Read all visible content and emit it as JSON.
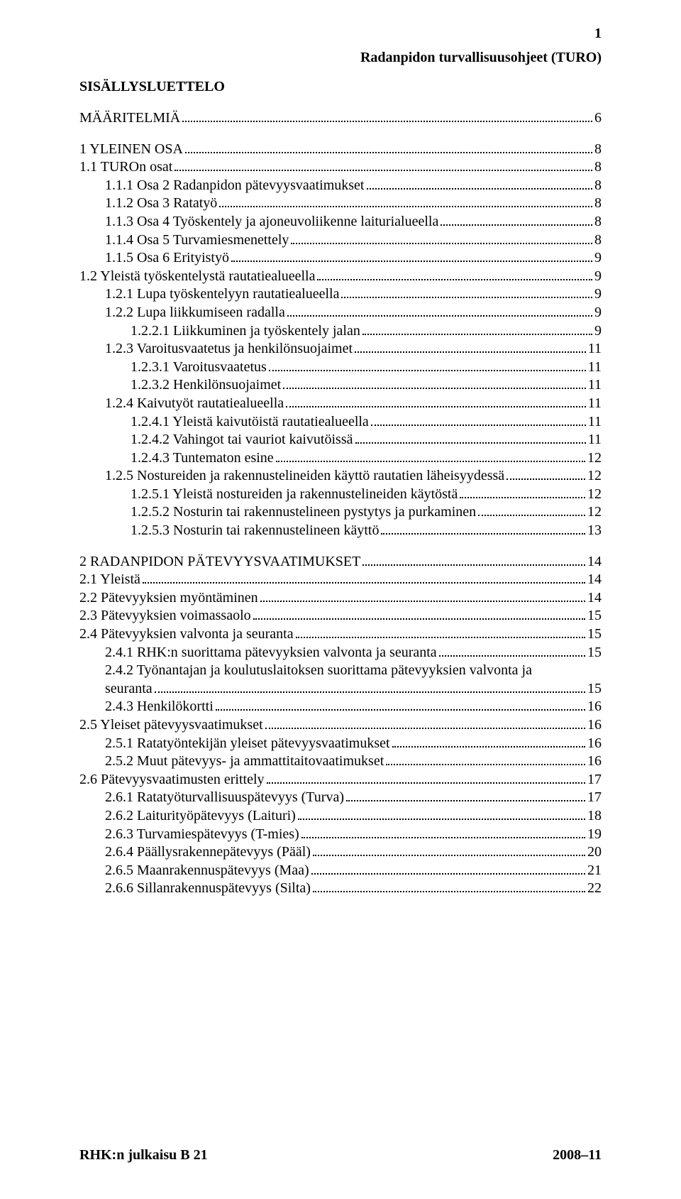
{
  "page_number": "1",
  "top_header": "Radanpidon turvallisuusohjeet (TURO)",
  "toc_title": "SISÄLLYSLUETTELO",
  "sections": [
    {
      "type": "row",
      "indent": 0,
      "label": "MÄÄRITELMIÄ",
      "page": "6"
    },
    {
      "type": "gap"
    },
    {
      "type": "row",
      "indent": 0,
      "label": "1 YLEINEN OSA",
      "page": "8"
    },
    {
      "type": "row",
      "indent": 0,
      "label": "1.1 TUROn osat",
      "page": "8"
    },
    {
      "type": "row",
      "indent": 1,
      "label": "1.1.1 Osa 2 Radanpidon pätevyysvaatimukset",
      "page": "8"
    },
    {
      "type": "row",
      "indent": 1,
      "label": "1.1.2 Osa 3 Ratatyö",
      "page": "8"
    },
    {
      "type": "row",
      "indent": 1,
      "label": "1.1.3 Osa 4 Työskentely ja ajoneuvoliikenne laiturialueella",
      "page": "8"
    },
    {
      "type": "row",
      "indent": 1,
      "label": "1.1.4 Osa 5 Turvamiesmenettely",
      "page": "8"
    },
    {
      "type": "row",
      "indent": 1,
      "label": "1.1.5 Osa 6 Erityistyö",
      "page": "9"
    },
    {
      "type": "row",
      "indent": 0,
      "label": "1.2 Yleistä työskentelystä rautatiealueella",
      "page": "9"
    },
    {
      "type": "row",
      "indent": 1,
      "label": "1.2.1 Lupa työskentelyyn rautatiealueella",
      "page": "9"
    },
    {
      "type": "row",
      "indent": 1,
      "label": "1.2.2 Lupa liikkumiseen radalla",
      "page": "9"
    },
    {
      "type": "row",
      "indent": 2,
      "label": "1.2.2.1 Liikkuminen ja työskentely jalan",
      "page": "9"
    },
    {
      "type": "row",
      "indent": 1,
      "label": "1.2.3 Varoitusvaatetus ja henkilönsuojaimet",
      "page": "11"
    },
    {
      "type": "row",
      "indent": 2,
      "label": "1.2.3.1 Varoitusvaatetus",
      "page": "11"
    },
    {
      "type": "row",
      "indent": 2,
      "label": "1.2.3.2 Henkilönsuojaimet",
      "page": "11"
    },
    {
      "type": "row",
      "indent": 1,
      "label": "1.2.4 Kaivutyöt rautatiealueella",
      "page": "11"
    },
    {
      "type": "row",
      "indent": 2,
      "label": "1.2.4.1 Yleistä kaivutöistä rautatiealueella",
      "page": "11"
    },
    {
      "type": "row",
      "indent": 2,
      "label": "1.2.4.2 Vahingot tai vauriot kaivutöissä",
      "page": "11"
    },
    {
      "type": "row",
      "indent": 2,
      "label": "1.2.4.3 Tuntematon esine",
      "page": "12"
    },
    {
      "type": "row",
      "indent": 1,
      "label": "1.2.5 Nostureiden ja rakennustelineiden käyttö rautatien läheisyydessä",
      "page": "12"
    },
    {
      "type": "row",
      "indent": 2,
      "label": "1.2.5.1 Yleistä nostureiden ja rakennustelineiden käytöstä",
      "page": "12"
    },
    {
      "type": "row",
      "indent": 2,
      "label": "1.2.5.2 Nosturin tai rakennustelineen pystytys ja purkaminen",
      "page": "12"
    },
    {
      "type": "row",
      "indent": 2,
      "label": "1.2.5.3 Nosturin tai rakennustelineen käyttö",
      "page": "13"
    },
    {
      "type": "gap"
    },
    {
      "type": "row",
      "indent": 0,
      "label": "2 RADANPIDON PÄTEVYYSVAATIMUKSET",
      "page": "14"
    },
    {
      "type": "row",
      "indent": 0,
      "label": "2.1 Yleistä",
      "page": "14"
    },
    {
      "type": "row",
      "indent": 0,
      "label": "2.2 Pätevyyksien myöntäminen",
      "page": "14"
    },
    {
      "type": "row",
      "indent": 0,
      "label": "2.3 Pätevyyksien voimassaolo",
      "page": "15"
    },
    {
      "type": "row",
      "indent": 0,
      "label": "2.4 Pätevyyksien valvonta ja seuranta",
      "page": "15"
    },
    {
      "type": "row",
      "indent": 1,
      "label": "2.4.1 RHK:n suorittama pätevyyksien valvonta ja seuranta",
      "page": "15"
    },
    {
      "type": "wrap",
      "line1": "2.4.2 Työnantajan ja koulutuslaitoksen suorittama pätevyyksien valvonta ja",
      "line2": "seuranta",
      "page": "15"
    },
    {
      "type": "row",
      "indent": 1,
      "label": "2.4.3 Henkilökortti",
      "page": "16"
    },
    {
      "type": "row",
      "indent": 0,
      "label": "2.5 Yleiset pätevyysvaatimukset",
      "page": "16"
    },
    {
      "type": "row",
      "indent": 1,
      "label": "2.5.1 Ratatyöntekijän yleiset pätevyysvaatimukset",
      "page": "16"
    },
    {
      "type": "row",
      "indent": 1,
      "label": "2.5.2 Muut pätevyys- ja ammattitaitovaatimukset",
      "page": "16"
    },
    {
      "type": "row",
      "indent": 0,
      "label": "2.6 Pätevyysvaatimusten erittely",
      "page": "17"
    },
    {
      "type": "row",
      "indent": 1,
      "label": "2.6.1 Ratatyöturvallisuuspätevyys (Turva)",
      "page": "17"
    },
    {
      "type": "row",
      "indent": 1,
      "label": "2.6.2 Laiturityöpätevyys (Laituri)",
      "page": "18"
    },
    {
      "type": "row",
      "indent": 1,
      "label": "2.6.3 Turvamiespätevyys (T-mies)",
      "page": "19"
    },
    {
      "type": "row",
      "indent": 1,
      "label": "2.6.4 Päällysrakennepätevyys (Pääl)",
      "page": "20"
    },
    {
      "type": "row",
      "indent": 1,
      "label": "2.6.5 Maanrakennuspätevyys (Maa)",
      "page": "21"
    },
    {
      "type": "row",
      "indent": 1,
      "label": "2.6.6 Sillanrakennuspätevyys (Silta)",
      "page": "22"
    }
  ],
  "footer_left": "RHK:n julkaisu B 21",
  "footer_right": "2008–11"
}
